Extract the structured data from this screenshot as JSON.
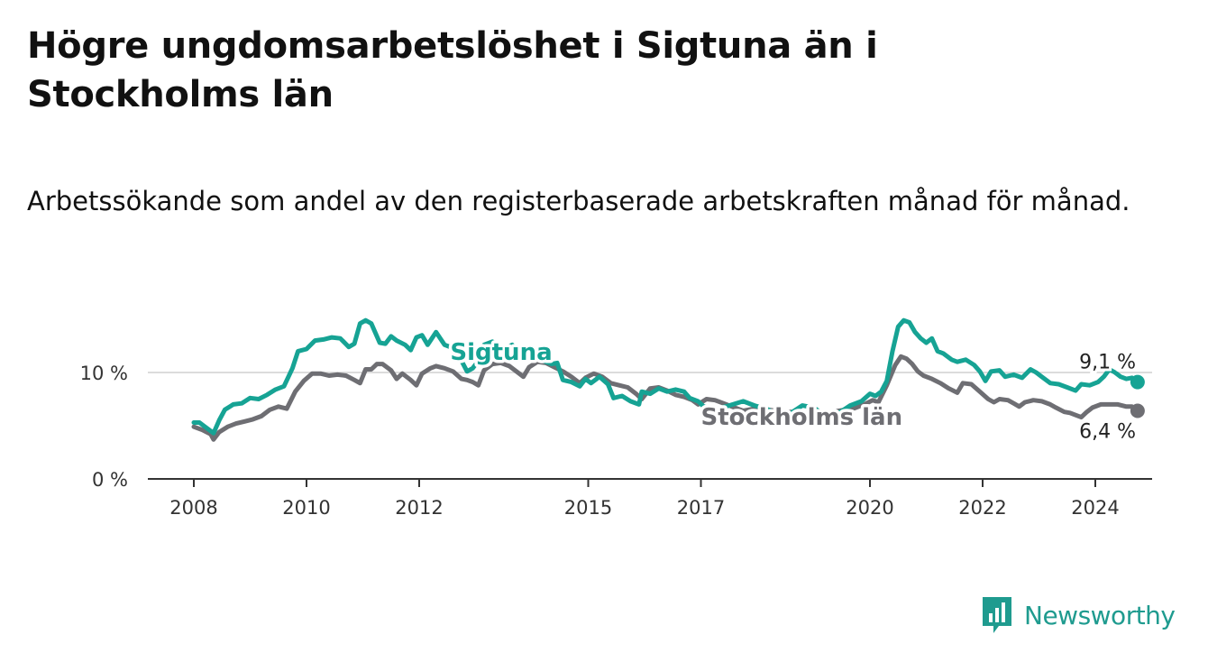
{
  "title": "Högre ungdomsarbetslöshet i Sigtuna än i Stockholms län",
  "subtitle": "Arbetssökande som andel av den registerbaserade arbetskraften månad för månad.",
  "brand": "Newsworthy",
  "chart_data": {
    "type": "line",
    "title": "Högre ungdomsarbetslöshet i Sigtuna än i Stockholms län",
    "xlabel": "",
    "ylabel": "",
    "xlim": [
      2008,
      2025
    ],
    "ylim": [
      0,
      17
    ],
    "y_ticks": [
      {
        "value": 0,
        "label": "0 %"
      },
      {
        "value": 10,
        "label": "10 %"
      }
    ],
    "x_ticks": [
      {
        "value": 2008,
        "label": "2008"
      },
      {
        "value": 2010,
        "label": "2010"
      },
      {
        "value": 2012,
        "label": "2012"
      },
      {
        "value": 2015,
        "label": "2015"
      },
      {
        "value": 2017,
        "label": "2017"
      },
      {
        "value": 2020,
        "label": "2020"
      },
      {
        "value": 2022,
        "label": "2022"
      },
      {
        "value": 2024,
        "label": "2024"
      }
    ],
    "series": [
      {
        "name": "Stockholms län",
        "color": "#6e6e73",
        "end_label": "6,4 %",
        "points": [
          [
            2008.0,
            4.9
          ],
          [
            2008.15,
            4.6
          ],
          [
            2008.3,
            4.2
          ],
          [
            2008.35,
            3.7
          ],
          [
            2008.45,
            4.4
          ],
          [
            2008.6,
            4.9
          ],
          [
            2008.75,
            5.2
          ],
          [
            2008.9,
            5.4
          ],
          [
            2009.05,
            5.6
          ],
          [
            2009.2,
            5.9
          ],
          [
            2009.35,
            6.5
          ],
          [
            2009.5,
            6.8
          ],
          [
            2009.65,
            6.6
          ],
          [
            2009.8,
            8.2
          ],
          [
            2009.95,
            9.2
          ],
          [
            2010.1,
            9.9
          ],
          [
            2010.25,
            9.9
          ],
          [
            2010.4,
            9.7
          ],
          [
            2010.55,
            9.8
          ],
          [
            2010.7,
            9.7
          ],
          [
            2010.85,
            9.3
          ],
          [
            2010.95,
            9.0
          ],
          [
            2011.05,
            10.3
          ],
          [
            2011.15,
            10.3
          ],
          [
            2011.25,
            10.8
          ],
          [
            2011.35,
            10.8
          ],
          [
            2011.5,
            10.2
          ],
          [
            2011.6,
            9.4
          ],
          [
            2011.7,
            9.9
          ],
          [
            2011.85,
            9.3
          ],
          [
            2011.95,
            8.8
          ],
          [
            2012.05,
            9.9
          ],
          [
            2012.2,
            10.4
          ],
          [
            2012.3,
            10.6
          ],
          [
            2012.45,
            10.4
          ],
          [
            2012.6,
            10.1
          ],
          [
            2012.75,
            9.4
          ],
          [
            2012.85,
            9.3
          ],
          [
            2012.95,
            9.1
          ],
          [
            2013.05,
            8.8
          ],
          [
            2013.15,
            10.2
          ],
          [
            2013.3,
            10.8
          ],
          [
            2013.45,
            10.9
          ],
          [
            2013.6,
            10.6
          ],
          [
            2013.75,
            10.0
          ],
          [
            2013.85,
            9.6
          ],
          [
            2013.95,
            10.5
          ],
          [
            2014.1,
            11.0
          ],
          [
            2014.25,
            10.9
          ],
          [
            2014.4,
            10.5
          ],
          [
            2014.55,
            10.1
          ],
          [
            2014.7,
            9.6
          ],
          [
            2014.85,
            9.0
          ],
          [
            2014.95,
            9.5
          ],
          [
            2015.1,
            9.9
          ],
          [
            2015.25,
            9.6
          ],
          [
            2015.4,
            9.0
          ],
          [
            2015.55,
            8.8
          ],
          [
            2015.7,
            8.6
          ],
          [
            2015.85,
            8.0
          ],
          [
            2015.95,
            7.5
          ],
          [
            2016.1,
            8.5
          ],
          [
            2016.25,
            8.6
          ],
          [
            2016.4,
            8.3
          ],
          [
            2016.55,
            7.9
          ],
          [
            2016.7,
            7.7
          ],
          [
            2016.85,
            7.4
          ],
          [
            2016.95,
            7.0
          ],
          [
            2017.1,
            7.5
          ],
          [
            2017.25,
            7.4
          ],
          [
            2017.4,
            7.1
          ],
          [
            2017.55,
            6.8
          ],
          [
            2017.75,
            6.4
          ],
          [
            2017.95,
            6.6
          ],
          [
            2018.2,
            6.5
          ],
          [
            2018.45,
            6.3
          ],
          [
            2018.7,
            6.3
          ],
          [
            2018.95,
            6.1
          ],
          [
            2019.2,
            6.2
          ],
          [
            2019.45,
            6.4
          ],
          [
            2019.7,
            6.6
          ],
          [
            2019.9,
            7.0
          ],
          [
            2020.05,
            7.4
          ],
          [
            2020.15,
            7.2
          ],
          [
            2020.3,
            8.8
          ],
          [
            2020.45,
            10.7
          ],
          [
            2020.55,
            11.5
          ],
          [
            2020.65,
            11.3
          ],
          [
            2020.75,
            10.8
          ],
          [
            2020.85,
            10.1
          ],
          [
            2020.95,
            9.7
          ],
          [
            2021.1,
            9.4
          ],
          [
            2021.25,
            9.0
          ],
          [
            2021.4,
            8.5
          ],
          [
            2021.55,
            8.1
          ],
          [
            2021.65,
            9.0
          ],
          [
            2021.8,
            8.9
          ],
          [
            2021.95,
            8.2
          ],
          [
            2022.1,
            7.5
          ],
          [
            2022.2,
            7.2
          ],
          [
            2022.3,
            7.5
          ],
          [
            2022.45,
            7.4
          ],
          [
            2022.55,
            7.1
          ],
          [
            2022.65,
            6.8
          ],
          [
            2022.75,
            7.2
          ],
          [
            2022.9,
            7.4
          ],
          [
            2023.05,
            7.3
          ],
          [
            2023.2,
            7.0
          ],
          [
            2023.3,
            6.7
          ],
          [
            2023.45,
            6.3
          ],
          [
            2023.55,
            6.2
          ],
          [
            2023.65,
            6.0
          ],
          [
            2023.75,
            5.8
          ],
          [
            2023.85,
            6.3
          ],
          [
            2023.95,
            6.7
          ],
          [
            2024.1,
            7.0
          ],
          [
            2024.25,
            7.0
          ],
          [
            2024.4,
            7.0
          ],
          [
            2024.55,
            6.8
          ],
          [
            2024.65,
            6.8
          ],
          [
            2024.75,
            6.4
          ]
        ]
      },
      {
        "name": "Sigtuna",
        "color": "#16a394",
        "end_label": "9,1 %",
        "points": [
          [
            2008.0,
            5.3
          ],
          [
            2008.1,
            5.3
          ],
          [
            2008.2,
            4.9
          ],
          [
            2008.35,
            4.3
          ],
          [
            2008.45,
            5.5
          ],
          [
            2008.55,
            6.5
          ],
          [
            2008.7,
            7.0
          ],
          [
            2008.85,
            7.1
          ],
          [
            2009.0,
            7.6
          ],
          [
            2009.15,
            7.5
          ],
          [
            2009.3,
            7.9
          ],
          [
            2009.45,
            8.4
          ],
          [
            2009.6,
            8.7
          ],
          [
            2009.75,
            10.4
          ],
          [
            2009.85,
            12.0
          ],
          [
            2010.0,
            12.2
          ],
          [
            2010.15,
            13.0
          ],
          [
            2010.3,
            13.1
          ],
          [
            2010.45,
            13.3
          ],
          [
            2010.6,
            13.2
          ],
          [
            2010.75,
            12.4
          ],
          [
            2010.85,
            12.7
          ],
          [
            2010.95,
            14.6
          ],
          [
            2011.05,
            14.9
          ],
          [
            2011.15,
            14.6
          ],
          [
            2011.3,
            12.8
          ],
          [
            2011.4,
            12.7
          ],
          [
            2011.5,
            13.4
          ],
          [
            2011.6,
            13.0
          ],
          [
            2011.75,
            12.6
          ],
          [
            2011.85,
            12.1
          ],
          [
            2011.95,
            13.3
          ],
          [
            2012.05,
            13.5
          ],
          [
            2012.15,
            12.6
          ],
          [
            2012.3,
            13.8
          ],
          [
            2012.45,
            12.6
          ],
          [
            2012.6,
            12.3
          ],
          [
            2012.75,
            11.1
          ],
          [
            2012.85,
            10.1
          ],
          [
            2012.95,
            10.4
          ],
          [
            2013.05,
            11.1
          ],
          [
            2013.15,
            12.6
          ],
          [
            2013.3,
            12.9
          ],
          [
            2013.5,
            12.2
          ],
          [
            2013.65,
            12.6
          ],
          [
            2013.75,
            11.8
          ],
          [
            2013.85,
            11.3
          ],
          [
            2013.95,
            11.6
          ],
          [
            2014.05,
            11.8
          ],
          [
            2014.2,
            11.1
          ],
          [
            2014.35,
            10.8
          ],
          [
            2014.45,
            10.9
          ],
          [
            2014.55,
            9.3
          ],
          [
            2014.7,
            9.1
          ],
          [
            2014.85,
            8.7
          ],
          [
            2014.95,
            9.4
          ],
          [
            2015.05,
            9.0
          ],
          [
            2015.2,
            9.6
          ],
          [
            2015.35,
            8.9
          ],
          [
            2015.45,
            7.6
          ],
          [
            2015.6,
            7.8
          ],
          [
            2015.75,
            7.3
          ],
          [
            2015.9,
            7.0
          ],
          [
            2015.95,
            8.2
          ],
          [
            2016.1,
            8.0
          ],
          [
            2016.25,
            8.5
          ],
          [
            2016.4,
            8.2
          ],
          [
            2016.55,
            8.4
          ],
          [
            2016.7,
            8.2
          ],
          [
            2016.8,
            7.6
          ],
          [
            2016.95,
            7.3
          ],
          [
            2017.05,
            6.8
          ],
          [
            2017.15,
            6.7
          ],
          [
            2017.3,
            6.6
          ],
          [
            2017.5,
            6.9
          ],
          [
            2017.75,
            7.3
          ],
          [
            2017.95,
            6.9
          ],
          [
            2018.2,
            6.5
          ],
          [
            2018.4,
            5.8
          ],
          [
            2018.6,
            6.2
          ],
          [
            2018.8,
            6.9
          ],
          [
            2019.0,
            6.7
          ],
          [
            2019.2,
            6.0
          ],
          [
            2019.45,
            6.2
          ],
          [
            2019.65,
            6.9
          ],
          [
            2019.85,
            7.3
          ],
          [
            2020.0,
            8.0
          ],
          [
            2020.1,
            7.8
          ],
          [
            2020.2,
            8.2
          ],
          [
            2020.3,
            9.2
          ],
          [
            2020.4,
            12.0
          ],
          [
            2020.5,
            14.3
          ],
          [
            2020.6,
            14.9
          ],
          [
            2020.7,
            14.7
          ],
          [
            2020.8,
            13.8
          ],
          [
            2020.9,
            13.2
          ],
          [
            2021.0,
            12.8
          ],
          [
            2021.1,
            13.2
          ],
          [
            2021.2,
            12.0
          ],
          [
            2021.3,
            11.8
          ],
          [
            2021.45,
            11.2
          ],
          [
            2021.55,
            11.0
          ],
          [
            2021.7,
            11.2
          ],
          [
            2021.85,
            10.7
          ],
          [
            2021.95,
            10.1
          ],
          [
            2022.05,
            9.2
          ],
          [
            2022.15,
            10.1
          ],
          [
            2022.3,
            10.2
          ],
          [
            2022.4,
            9.6
          ],
          [
            2022.55,
            9.8
          ],
          [
            2022.7,
            9.5
          ],
          [
            2022.85,
            10.3
          ],
          [
            2022.95,
            10.0
          ],
          [
            2023.05,
            9.6
          ],
          [
            2023.2,
            9.0
          ],
          [
            2023.35,
            8.9
          ],
          [
            2023.5,
            8.6
          ],
          [
            2023.65,
            8.3
          ],
          [
            2023.75,
            8.9
          ],
          [
            2023.9,
            8.8
          ],
          [
            2024.05,
            9.1
          ],
          [
            2024.15,
            9.6
          ],
          [
            2024.25,
            10.3
          ],
          [
            2024.35,
            10.0
          ],
          [
            2024.45,
            9.6
          ],
          [
            2024.55,
            9.4
          ],
          [
            2024.65,
            9.5
          ],
          [
            2024.75,
            9.1
          ]
        ]
      }
    ]
  }
}
